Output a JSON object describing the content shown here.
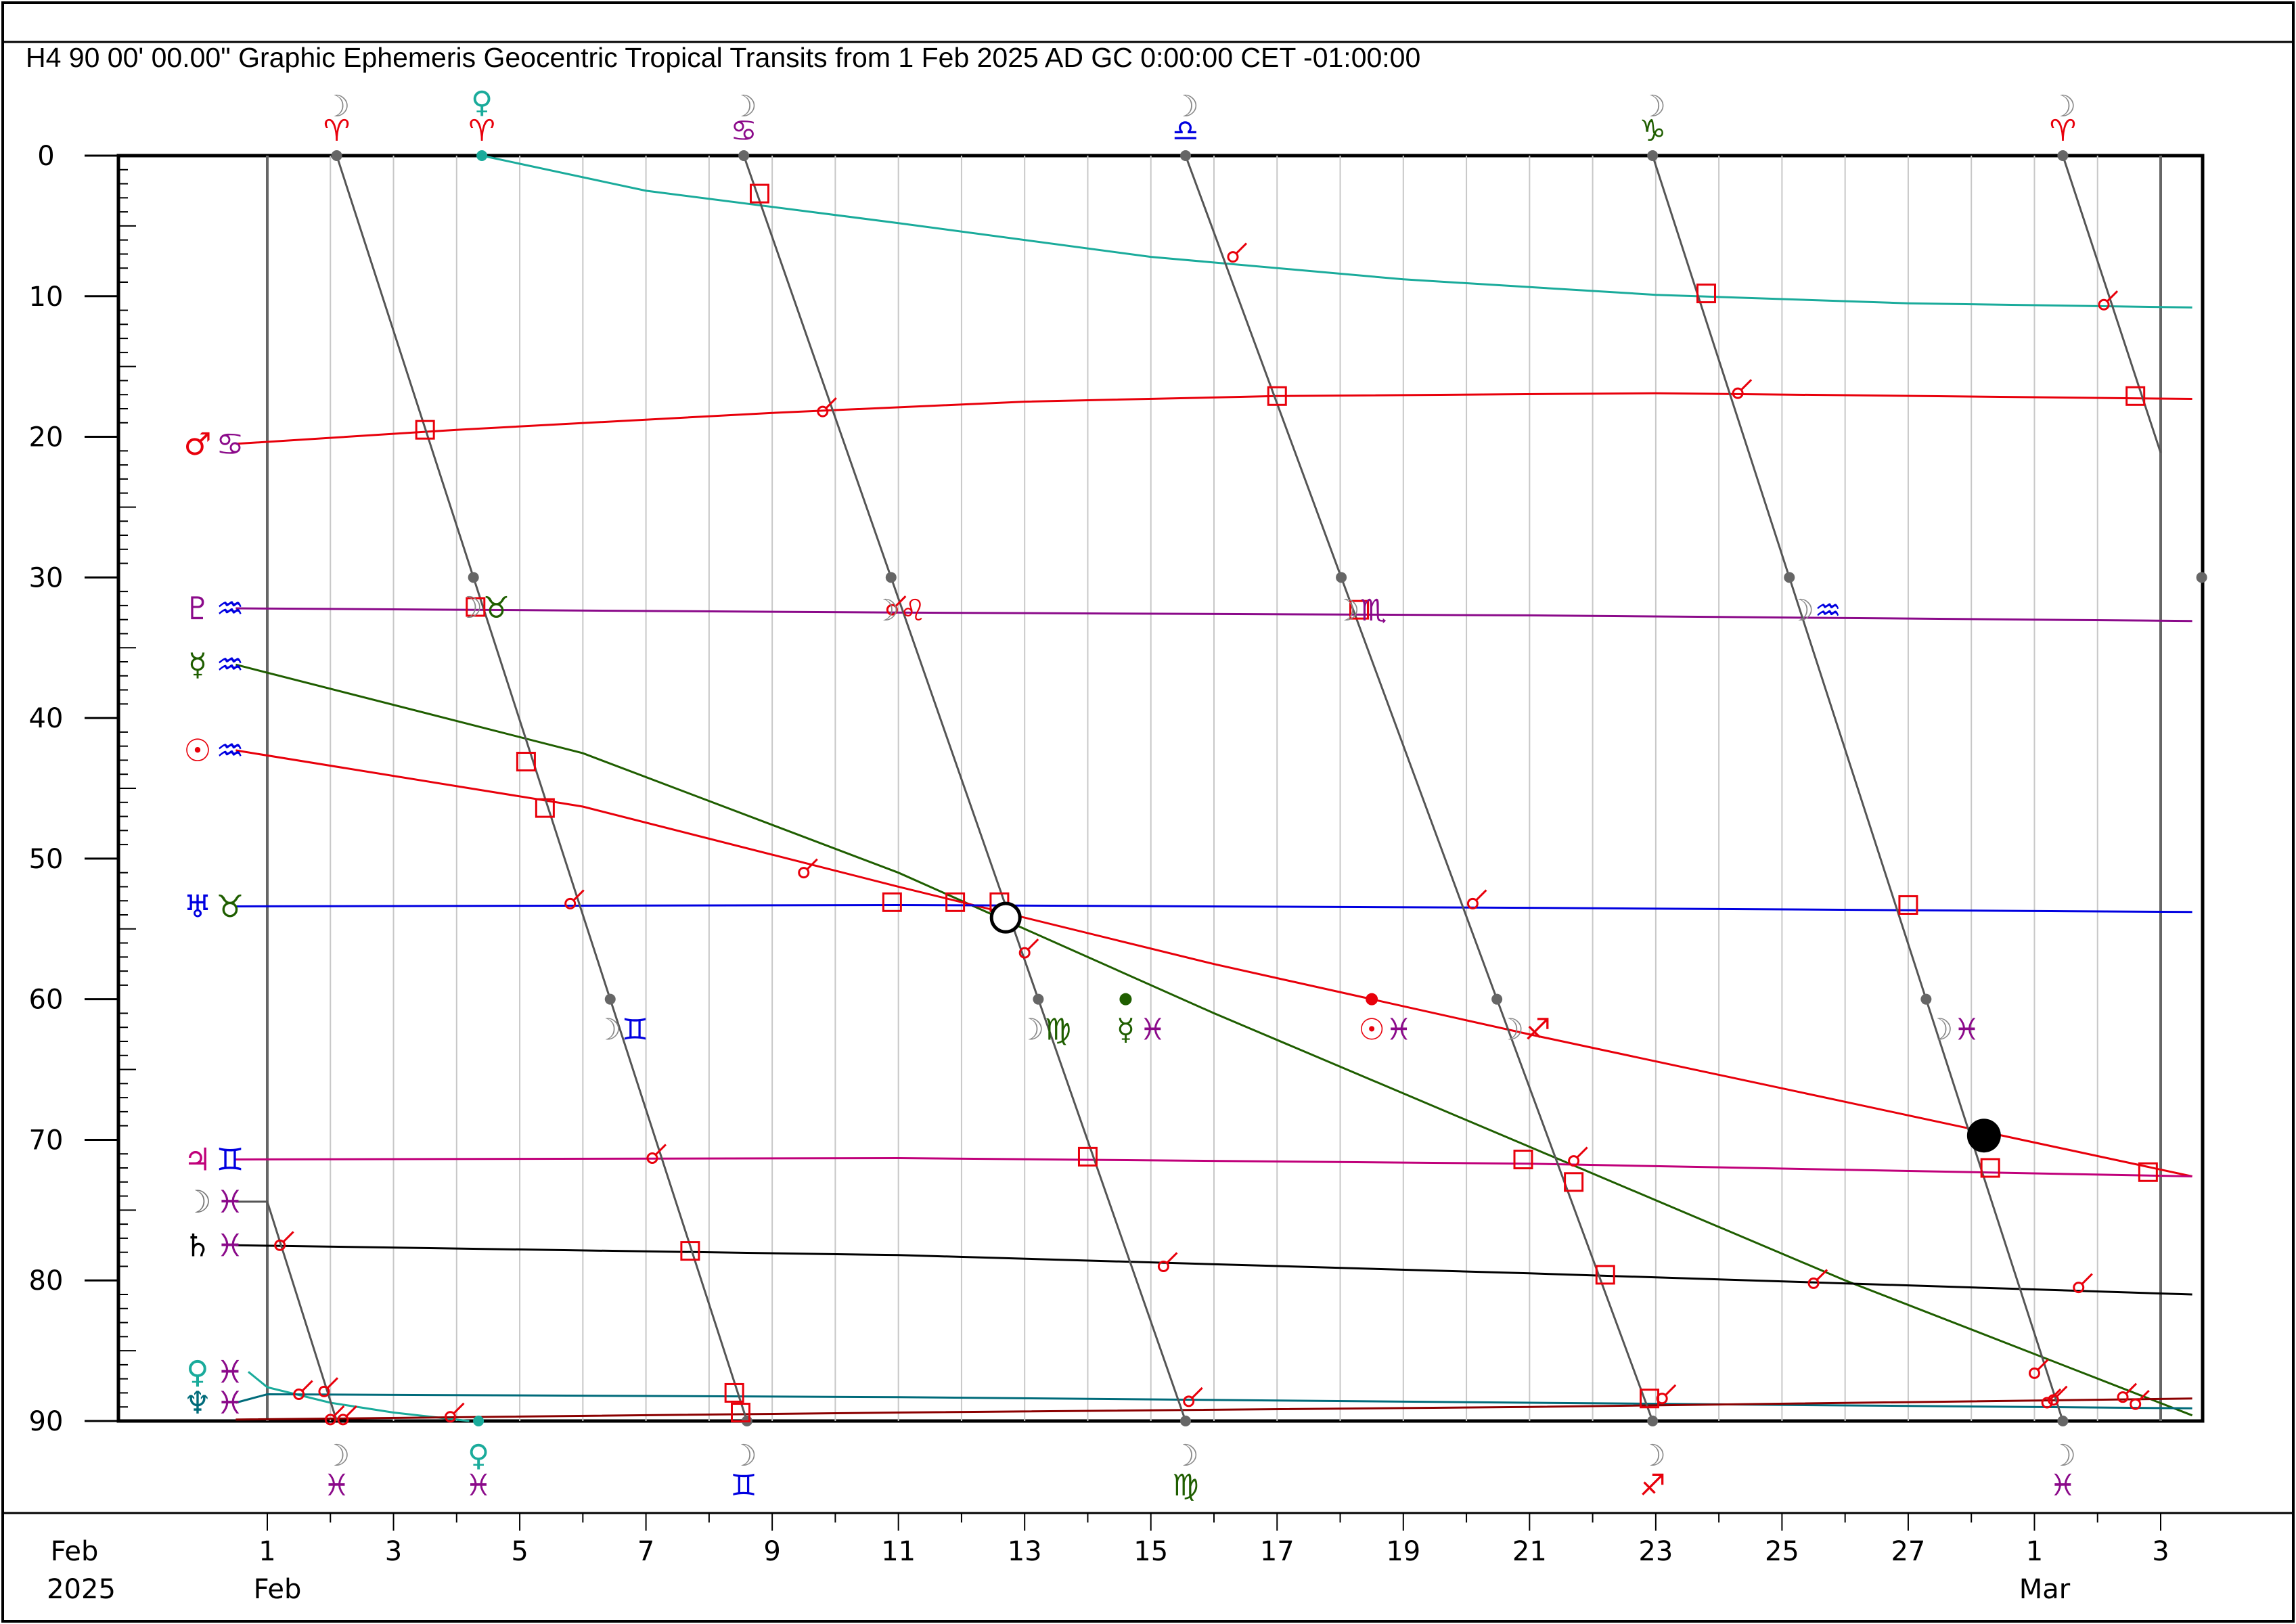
{
  "header": {
    "title": "H4   90 00' 00.00\" Graphic Ephemeris Geocentric Tropical Transits from 1 Feb 2025 AD GC 0:00:00 CET -01:00:00"
  },
  "chart_data": {
    "type": "line",
    "title": "H4   90 00' 00.00\" Graphic Ephemeris Geocentric Tropical Transits from 1 Feb 2025 AD GC 0:00:00 CET -01:00:00",
    "xlabel": "",
    "ylabel": "",
    "x_range_days": [
      0,
      30
    ],
    "ylim": [
      0,
      90
    ],
    "y_ticks": [
      "0",
      "10",
      "20",
      "30",
      "40",
      "50",
      "60",
      "70",
      "80",
      "90"
    ],
    "x_tick_labels": [
      {
        "day": 0,
        "label": "1"
      },
      {
        "day": 2,
        "label": "3"
      },
      {
        "day": 4,
        "label": "5"
      },
      {
        "day": 6,
        "label": "7"
      },
      {
        "day": 8,
        "label": "9"
      },
      {
        "day": 10,
        "label": "11"
      },
      {
        "day": 12,
        "label": "13"
      },
      {
        "day": 14,
        "label": "15"
      },
      {
        "day": 16,
        "label": "17"
      },
      {
        "day": 18,
        "label": "19"
      },
      {
        "day": 20,
        "label": "21"
      },
      {
        "day": 22,
        "label": "23"
      },
      {
        "day": 24,
        "label": "25"
      },
      {
        "day": 26,
        "label": "27"
      },
      {
        "day": 28,
        "label": "1"
      },
      {
        "day": 30,
        "label": "3"
      }
    ],
    "month_labels": [
      {
        "day": 0,
        "label": "Feb"
      },
      {
        "day": 28,
        "label": "Mar"
      }
    ],
    "corner_label": {
      "month": "Feb",
      "year": "2025"
    },
    "grid": true,
    "series": [
      {
        "glyph": "♀",
        "sign": "♓",
        "color": "#1aab9b",
        "points": [
          [
            -0.3,
            86.5
          ],
          [
            0,
            87.6
          ],
          [
            1,
            88.7
          ],
          [
            2,
            89.4
          ],
          [
            3.2,
            90
          ]
        ]
      },
      {
        "glyph": "♀",
        "sign": "♈",
        "color": "#1aab9b",
        "points": [
          [
            3.4,
            0
          ],
          [
            6,
            2.5
          ],
          [
            10,
            4.8
          ],
          [
            14,
            7.2
          ],
          [
            18,
            8.8
          ],
          [
            22,
            9.9
          ],
          [
            26,
            10.5
          ],
          [
            30.5,
            10.8
          ]
        ]
      },
      {
        "glyph": "♂",
        "sign": "♋",
        "color": "#e8000b",
        "points": [
          [
            -0.5,
            20.5
          ],
          [
            3,
            19.5
          ],
          [
            8,
            18.3
          ],
          [
            12,
            17.5
          ],
          [
            16,
            17.1
          ],
          [
            22,
            16.9
          ],
          [
            30.5,
            17.3
          ]
        ]
      },
      {
        "glyph": "♇",
        "sign": "♒",
        "color": "#8b0a8a",
        "points": [
          [
            -0.5,
            32.2
          ],
          [
            10,
            32.5
          ],
          [
            20,
            32.7
          ],
          [
            30.5,
            33.1
          ]
        ]
      },
      {
        "glyph": "☿",
        "sign": "♒",
        "color": "#1f5e00",
        "points": [
          [
            -0.5,
            36.2
          ],
          [
            5,
            42.5
          ],
          [
            10,
            51
          ],
          [
            15,
            61
          ],
          [
            20,
            70.5
          ],
          [
            25,
            80
          ],
          [
            30.5,
            89.6
          ]
        ]
      },
      {
        "glyph": "☉",
        "sign": "♒",
        "color": "#e8000b",
        "points": [
          [
            -0.5,
            42.3
          ],
          [
            5,
            46.3
          ],
          [
            10,
            52
          ],
          [
            15,
            57.5
          ],
          [
            20,
            62.5
          ],
          [
            25,
            67.3
          ],
          [
            30.5,
            72.6
          ]
        ]
      },
      {
        "glyph": "♅",
        "sign": "♉",
        "color": "#0000e0",
        "points": [
          [
            -0.5,
            53.4
          ],
          [
            10,
            53.3
          ],
          [
            20,
            53.5
          ],
          [
            30.5,
            53.8
          ]
        ]
      },
      {
        "glyph": "♃",
        "sign": "♊",
        "color": "#c0007a",
        "points": [
          [
            -0.5,
            71.4
          ],
          [
            10,
            71.3
          ],
          [
            20,
            71.7
          ],
          [
            30.5,
            72.6
          ]
        ]
      },
      {
        "glyph": "♄",
        "sign": "♓",
        "color": "#000000",
        "points": [
          [
            -0.5,
            77.5
          ],
          [
            10,
            78.2
          ],
          [
            20,
            79.5
          ],
          [
            30.5,
            81
          ]
        ]
      },
      {
        "glyph": "♆",
        "sign": "♓",
        "color": "#006b7a",
        "points": [
          [
            -0.5,
            88.7
          ],
          [
            0,
            88.1
          ],
          [
            10,
            88.3
          ],
          [
            20,
            88.7
          ],
          [
            30.5,
            89.1
          ]
        ]
      },
      {
        "glyph": "⚷",
        "sign": "",
        "color": "#8b0000",
        "points": [
          [
            -0.5,
            89.9
          ],
          [
            10,
            89.4
          ],
          [
            20,
            89
          ],
          [
            30.5,
            88.4
          ]
        ]
      },
      {
        "glyph": "☽",
        "sign": "♓",
        "color": "#555555",
        "points": [
          [
            -0.5,
            74.4
          ],
          [
            0,
            74.4
          ],
          [
            1.1,
            90
          ]
        ]
      }
    ],
    "moon_lines": [
      {
        "x0": 1.1,
        "x1": 7.6,
        "top_sign": "♈",
        "top_sign_color": "#e8000b",
        "top_glyph": "☽",
        "bottom_sign": "♓",
        "bottom_sign_color": "#8b0a8a",
        "bottom_glyph": "☽"
      },
      {
        "x0": 7.55,
        "x1": 14.55,
        "top_sign": "♋",
        "top_sign_color": "#8b0a8a",
        "top_glyph": "☽",
        "bottom_sign": "♊",
        "bottom_sign_color": "#0000e0",
        "bottom_glyph": "☽"
      },
      {
        "x0": 14.55,
        "x1": 21.95,
        "top_sign": "♎",
        "top_sign_color": "#0000e0",
        "top_glyph": "☽",
        "bottom_sign": "♍",
        "bottom_sign_color": "#1f5e00",
        "bottom_glyph": "☽"
      },
      {
        "x0": 21.95,
        "x1": 28.45,
        "top_sign": "♑",
        "top_sign_color": "#1f5e00",
        "top_glyph": "☽",
        "bottom_sign": "♐",
        "bottom_sign_color": "#e8000b",
        "bottom_glyph": "☽"
      },
      {
        "x0": 28.45,
        "x1": 35.05,
        "top_sign": "♈",
        "top_sign_color": "#e8000b",
        "top_glyph": "☽",
        "bottom_sign": "♓",
        "bottom_sign_color": "#8b0a8a",
        "bottom_glyph": "☽"
      }
    ],
    "venus_sign_change": {
      "day": 3.4,
      "top_glyph": "♀",
      "top_sign": "♈",
      "bottom_glyph": "♀",
      "bottom_sign": "♓",
      "color": "#1aab9b"
    },
    "ingress_labels": [
      {
        "day": 3.2,
        "deg": 32.2,
        "glyph": "☽",
        "sign": "♉",
        "sign_color": "#1f5e00"
      },
      {
        "day": 5.4,
        "deg": 62.2,
        "glyph": "☽",
        "sign": "♊",
        "sign_color": "#0000e0"
      },
      {
        "day": 9.8,
        "deg": 32.4,
        "glyph": "☽",
        "sign": "♌",
        "sign_color": "#e8000b"
      },
      {
        "day": 12.1,
        "deg": 62.2,
        "glyph": "☽",
        "sign": "♍",
        "sign_color": "#1f5e00"
      },
      {
        "day": 17.1,
        "deg": 32.4,
        "glyph": "☽",
        "sign": "♏",
        "sign_color": "#8b0a8a"
      },
      {
        "day": 19.7,
        "deg": 62.2,
        "glyph": "☽",
        "sign": "♐",
        "sign_color": "#e8000b"
      },
      {
        "day": 24.3,
        "deg": 32.4,
        "glyph": "☽",
        "sign": "♒",
        "sign_color": "#0000e0"
      },
      {
        "day": 26.5,
        "deg": 62.2,
        "glyph": "☽",
        "sign": "♓",
        "sign_color": "#8b0a8a"
      },
      {
        "day": 13.6,
        "deg": 62.2,
        "glyph": "☿",
        "glyph_color": "#1f5e00",
        "sign": "♓",
        "sign_color": "#8b0a8a"
      },
      {
        "day": 17.5,
        "deg": 62.2,
        "glyph": "☉",
        "glyph_color": "#e8000b",
        "sign": "♓",
        "sign_color": "#8b0a8a"
      }
    ],
    "ingress_dots": [
      {
        "day": 13.6,
        "deg": 60,
        "color": "#1f5e00"
      },
      {
        "day": 17.5,
        "deg": 60,
        "color": "#e8000b"
      }
    ],
    "lunations": [
      {
        "day": 11.7,
        "deg": 54.2,
        "kind": "full"
      },
      {
        "day": 27.2,
        "deg": 69.7,
        "kind": "new"
      }
    ],
    "squares": [
      [
        2.5,
        19.5
      ],
      [
        3.3,
        32.1
      ],
      [
        4.1,
        43.1
      ],
      [
        4.4,
        46.4
      ],
      [
        6.7,
        77.9
      ],
      [
        7.4,
        88
      ],
      [
        7.5,
        89.4
      ],
      [
        7.8,
        2.7
      ],
      [
        9.9,
        53.1
      ],
      [
        10.9,
        53.1
      ],
      [
        11.6,
        53.1
      ],
      [
        13.0,
        71.2
      ],
      [
        16.0,
        17.1
      ],
      [
        17.3,
        32.3
      ],
      [
        19.9,
        71.4
      ],
      [
        20.7,
        73
      ],
      [
        21.2,
        79.6
      ],
      [
        21.9,
        88.4
      ],
      [
        22.8,
        9.8
      ],
      [
        26.0,
        53.3
      ],
      [
        27.3,
        72
      ],
      [
        29.6,
        17.1
      ],
      [
        29.8,
        72.3
      ]
    ],
    "sextiles": [
      [
        0.2,
        77.5
      ],
      [
        0.9,
        87.9
      ],
      [
        1.0,
        89.9
      ],
      [
        4.8,
        53.2
      ],
      [
        6.1,
        71.3
      ],
      [
        8.5,
        51
      ],
      [
        8.8,
        18.2
      ],
      [
        12.0,
        56.7
      ],
      [
        14.2,
        79
      ],
      [
        15.3,
        7.2
      ],
      [
        19.1,
        53.2
      ],
      [
        22.1,
        88.4
      ],
      [
        23.3,
        16.9
      ],
      [
        24.5,
        80.2
      ],
      [
        20.7,
        71.5
      ],
      [
        28.0,
        86.6
      ],
      [
        28.3,
        88.5
      ],
      [
        29.4,
        88.3
      ],
      [
        29.6,
        88.8
      ],
      [
        28.7,
        80.5
      ],
      [
        29.1,
        10.6
      ],
      [
        14.6,
        88.6
      ],
      [
        2.9,
        89.7
      ],
      [
        1.2,
        89.9
      ],
      [
        0.5,
        88.1
      ],
      [
        9.9,
        32.3
      ],
      [
        28.2,
        88.7
      ]
    ],
    "left_labels": [
      {
        "deg": 20.5,
        "glyph": "♂",
        "glyph_color": "#e8000b",
        "sign": "♋",
        "sign_color": "#8b0a8a"
      },
      {
        "deg": 32.2,
        "glyph": "♇",
        "glyph_color": "#8b0a8a",
        "sign": "♒",
        "sign_color": "#0000e0"
      },
      {
        "deg": 36.2,
        "glyph": "☿",
        "glyph_color": "#1f5e00",
        "sign": "♒",
        "sign_color": "#0000e0"
      },
      {
        "deg": 42.3,
        "glyph": "☉",
        "glyph_color": "#e8000b",
        "sign": "♒",
        "sign_color": "#0000e0"
      },
      {
        "deg": 53.4,
        "glyph": "♅",
        "glyph_color": "#0000e0",
        "sign": "♉",
        "sign_color": "#1f5e00"
      },
      {
        "deg": 71.4,
        "glyph": "♃",
        "glyph_color": "#c0007a",
        "sign": "♊",
        "sign_color": "#0000e0"
      },
      {
        "deg": 74.4,
        "glyph": "☽",
        "glyph_color": "#777777",
        "sign": "♓",
        "sign_color": "#8b0a8a"
      },
      {
        "deg": 77.5,
        "glyph": "♄",
        "glyph_color": "#000000",
        "sign": "♓",
        "sign_color": "#8b0a8a"
      },
      {
        "deg": 86.5,
        "glyph": "♀",
        "glyph_color": "#1aab9b",
        "sign": "♓",
        "sign_color": "#8b0a8a"
      },
      {
        "deg": 88.7,
        "glyph": "♆",
        "glyph_color": "#006b7a",
        "sign": "♓",
        "sign_color": "#8b0a8a"
      }
    ]
  }
}
